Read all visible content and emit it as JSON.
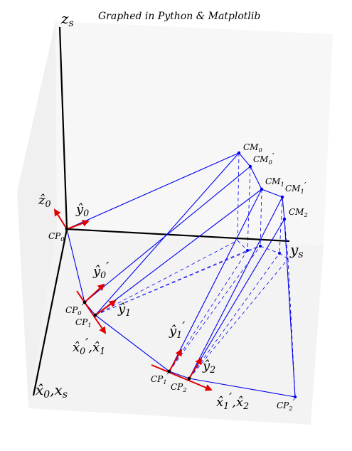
{
  "title": "Graphed in Python & Matplotlib",
  "colors": {
    "pane": "#f0f0f0",
    "pane_light": "#f7f7f7",
    "link": "#0000ee",
    "arrow": "#e00000",
    "axis": "#000000"
  },
  "axis_labels": {
    "z": {
      "main": "z",
      "sub": "s"
    },
    "y": {
      "main": "y",
      "sub": "s"
    },
    "x": {
      "main": "x̂",
      "sub": "0",
      "rest": ",x",
      "rest_sub": "s"
    }
  },
  "points": {
    "CM0": {
      "main": "CM",
      "sub": "0"
    },
    "CM0p": {
      "main": "CM",
      "sub": "0",
      "prime": "′"
    },
    "CM1": {
      "main": "CM",
      "sub": "1"
    },
    "CM1p": {
      "main": "CM",
      "sub": "1",
      "prime": "′"
    },
    "CM2": {
      "main": "CM",
      "sub": "2"
    },
    "CP0": {
      "main": "CP",
      "sub": "0"
    },
    "CP0p": {
      "main": "CP",
      "sub": "0",
      "prime": "′"
    },
    "CP1": {
      "main": "CP",
      "sub": "1"
    },
    "CP1p": {
      "main": "CP",
      "sub": "1",
      "prime": "′"
    },
    "CP2": {
      "main": "CP",
      "sub": "2"
    },
    "CP2p": {
      "main": "CP",
      "sub": "2",
      "prime": "′"
    }
  },
  "vectors": {
    "z0": {
      "main": "ẑ",
      "sub": "0"
    },
    "y0": {
      "main": "ŷ",
      "sub": "0"
    },
    "y0p": {
      "main": "ŷ",
      "sub": "0",
      "prime": "′"
    },
    "y1": {
      "main": "ŷ",
      "sub": "1"
    },
    "x0p_x1": {
      "main": "x̂",
      "sub": "0",
      "prime": "′",
      "rest": ",x̂",
      "rest_sub": "1"
    },
    "y1p": {
      "main": "ŷ",
      "sub": "1",
      "prime": "′"
    },
    "y2": {
      "main": "ŷ",
      "sub": "2"
    },
    "x1p_x2": {
      "main": "x̂",
      "sub": "1",
      "prime": "′",
      "rest": ",x̂",
      "rest_sub": "2"
    }
  }
}
